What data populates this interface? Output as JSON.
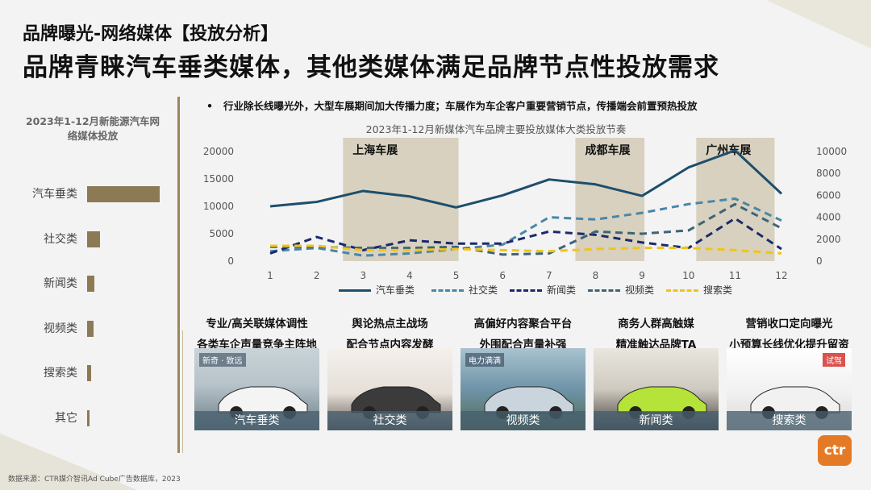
{
  "header": {
    "subtitle": "品牌曝光-网络媒体【投放分析】",
    "title": "品牌青睐汽车垂类媒体，其他类媒体满足品牌节点性投放需求"
  },
  "left_panel": {
    "title": "2023年1-12月新能源汽车网络媒体投放"
  },
  "bullet_note": "行业除长线曝光外，大型车展期间加大传播力度；车展作为车企客户重要营销节点，传播端会前置预热投放",
  "event_labels": [
    "上海车展",
    "成都车展",
    "广州车展"
  ],
  "columns": [
    {
      "h1": "专业/高关联媒体调性",
      "h2": "各类车企声量竞争主阵地",
      "caption": "汽车垂类",
      "img_text": [
        "新奇",
        "致远"
      ]
    },
    {
      "h1": "舆论热点主战场",
      "h2": "配合节点内容发酵",
      "caption": "社交类",
      "img_text": []
    },
    {
      "h1": "高偏好内容聚合平台",
      "h2": "外围配合声量补强",
      "caption": "视频类",
      "img_text": [
        "电力满满"
      ]
    },
    {
      "h1": "商务人群高触媒",
      "h2": "精准触达品牌TA",
      "caption": "新闻类",
      "img_text": []
    },
    {
      "h1": "营销收口定向曝光",
      "h2": "小预算长线优化提升留资",
      "caption": "搜索类",
      "img_text": [
        "试驾"
      ]
    }
  ],
  "source": "数据来源：CTR媒介智讯Ad Cube广告数据库，2023",
  "logo": "ctr",
  "colors": {
    "gold": "#8c7a54",
    "band": "#cfc6ae",
    "navy": "#1f4e6b",
    "teal": "#4a86a8",
    "darknavy": "#1a2a6c",
    "slate": "#3e6478",
    "yellow": "#f0c419"
  },
  "chart_data": [
    {
      "type": "bar",
      "orientation": "horizontal",
      "title": "2023年1-12月新能源汽车网络媒体投放",
      "categories": [
        "汽车垂类",
        "社交类",
        "新闻类",
        "视频类",
        "搜索类",
        "其它"
      ],
      "values": [
        100,
        18,
        10,
        9,
        5,
        3
      ]
    },
    {
      "type": "line",
      "title": "2023年1-12月新媒体汽车品牌主要投放媒体大类投放节奏",
      "x": [
        1,
        2,
        3,
        4,
        5,
        6,
        7,
        8,
        9,
        10,
        11,
        12
      ],
      "y_left_ticks": [
        0,
        5000,
        10000,
        15000,
        20000
      ],
      "y_right_ticks": [
        0,
        2000,
        4000,
        6000,
        8000,
        10000
      ],
      "ylim_left": [
        0,
        20000
      ],
      "ylim_right": [
        0,
        10000
      ],
      "highlight_bands": [
        {
          "label": "上海车展",
          "from": 3,
          "to": 5
        },
        {
          "label": "成都车展",
          "from": 8,
          "to": 9
        },
        {
          "label": "广州车展",
          "from": 10.6,
          "to": 11.8
        }
      ],
      "series": [
        {
          "name": "汽车垂类",
          "axis": "left",
          "style": "solid",
          "color": "#1f4e6b",
          "values": [
            10000,
            10800,
            12800,
            11800,
            9800,
            12000,
            14900,
            14000,
            11900,
            17100,
            20200,
            12300
          ]
        },
        {
          "name": "社交类",
          "axis": "right",
          "style": "dashed",
          "color": "#4a86a8",
          "values": [
            900,
            1200,
            500,
            700,
            1100,
            1500,
            4000,
            3800,
            4400,
            5200,
            5700,
            3700
          ]
        },
        {
          "name": "新闻类",
          "axis": "right",
          "style": "dashed",
          "color": "#1a2a6c",
          "values": [
            700,
            2200,
            1000,
            1900,
            1600,
            1600,
            2700,
            2400,
            1700,
            1200,
            3900,
            1100
          ]
        },
        {
          "name": "视频类",
          "axis": "right",
          "style": "dashed",
          "color": "#3e6478",
          "values": [
            1300,
            1300,
            1200,
            1200,
            1300,
            600,
            700,
            2700,
            2500,
            2800,
            5200,
            3000
          ]
        },
        {
          "name": "搜索类",
          "axis": "right",
          "style": "dashed",
          "color": "#f0c419",
          "values": [
            1400,
            1400,
            1000,
            1000,
            1100,
            1000,
            900,
            1100,
            1200,
            1200,
            1000,
            700
          ]
        }
      ]
    }
  ]
}
